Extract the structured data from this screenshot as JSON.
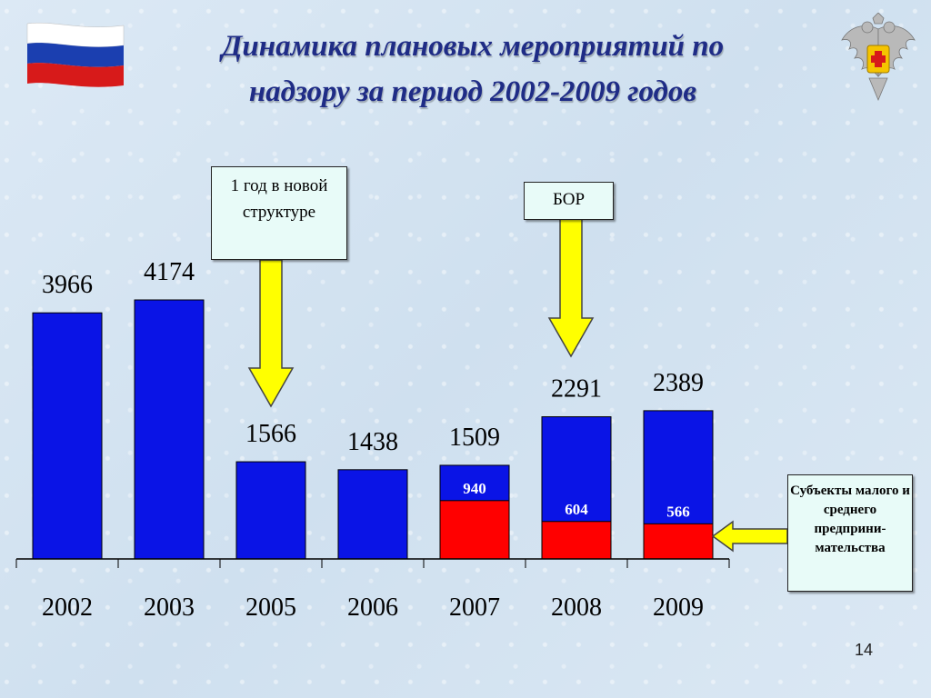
{
  "title_line1": "Динамика плановых мероприятий по",
  "title_line2": "надзору за период 2002-2009 годов",
  "callouts": {
    "new_structure": "1 год в новой структуре",
    "bor": "БОР",
    "smb": "Субъекты малого и среднего предприни- мательства"
  },
  "page_number": "14",
  "icons": {
    "flag": "russian-flag-icon",
    "emblem": "rospotrebnadzor-emblem-icon"
  },
  "colors": {
    "bar_total": "#0a14e6",
    "bar_small_business": "#ff0000",
    "arrow": "#ffff00",
    "title": "#1f2c86"
  },
  "chart_data": {
    "type": "bar",
    "categories": [
      "2002",
      "2003",
      "2005",
      "2006",
      "2007",
      "2008",
      "2009"
    ],
    "series": [
      {
        "values": [
          3966,
          4174,
          1566,
          1438,
          1509,
          2291,
          2389
        ]
      },
      {
        "values": [
          null,
          null,
          null,
          null,
          940,
          604,
          566
        ]
      }
    ],
    "ylim": [
      0,
      4500
    ],
    "grid": false,
    "legend": "none"
  }
}
